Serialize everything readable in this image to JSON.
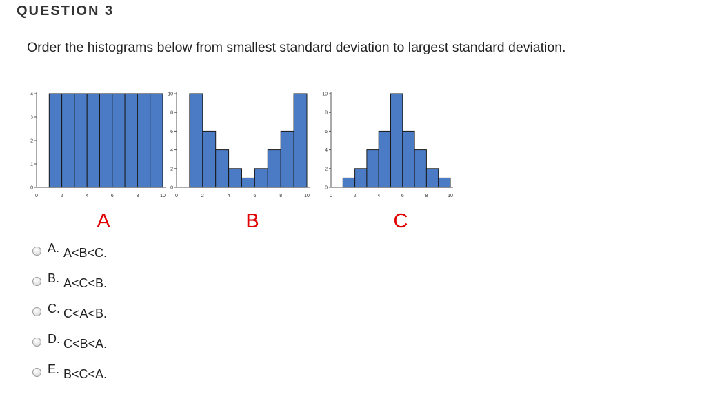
{
  "question": {
    "header": "QUESTION 3",
    "text": "Order the histograms below from smallest standard deviation to largest standard deviation."
  },
  "chart_data": [
    {
      "type": "bar",
      "label": "A",
      "bin_edges": [
        1,
        2,
        3,
        4,
        5,
        6,
        7,
        8,
        9,
        10
      ],
      "values": [
        4,
        4,
        4,
        4,
        4,
        4,
        4,
        4,
        4
      ],
      "xlim": [
        0,
        10
      ],
      "ylim": [
        0,
        4
      ],
      "xticks": [
        "0",
        "2",
        "4",
        "6",
        "8",
        "10"
      ],
      "yticks": [
        "0",
        "1",
        "2",
        "3",
        "4"
      ],
      "bar_color": "#4a7bc4"
    },
    {
      "type": "bar",
      "label": "B",
      "bin_edges": [
        1,
        2,
        3,
        4,
        5,
        6,
        7,
        8,
        9,
        10
      ],
      "values": [
        10,
        6,
        4,
        2,
        1,
        2,
        4,
        6,
        10
      ],
      "xlim": [
        0,
        10
      ],
      "ylim": [
        0,
        10
      ],
      "xticks": [
        "0",
        "2",
        "4",
        "6",
        "8",
        "10"
      ],
      "yticks": [
        "0",
        "2",
        "4",
        "6",
        "8",
        "10"
      ],
      "bar_color": "#4a7bc4"
    },
    {
      "type": "bar",
      "label": "C",
      "bin_edges": [
        1,
        2,
        3,
        4,
        5,
        6,
        7,
        8,
        9,
        10
      ],
      "values": [
        1,
        2,
        4,
        6,
        10,
        6,
        4,
        2,
        1
      ],
      "xlim": [
        0,
        10
      ],
      "ylim": [
        0,
        10
      ],
      "xticks": [
        "0",
        "2",
        "4",
        "6",
        "8",
        "10"
      ],
      "yticks": [
        "0",
        "2",
        "4",
        "6",
        "8",
        "10"
      ],
      "bar_color": "#4a7bc4"
    }
  ],
  "colors": {
    "bar_fill": "#4a7bc4",
    "bar_stroke": "#1a1a1a",
    "label_red": "#e00000"
  },
  "options": [
    {
      "letter": "A.",
      "text": "A<B<C."
    },
    {
      "letter": "B.",
      "text": "A<C<B."
    },
    {
      "letter": "C.",
      "text": "C<A<B."
    },
    {
      "letter": "D.",
      "text": "C<B<A."
    },
    {
      "letter": "E.",
      "text": "B<C<A."
    }
  ]
}
